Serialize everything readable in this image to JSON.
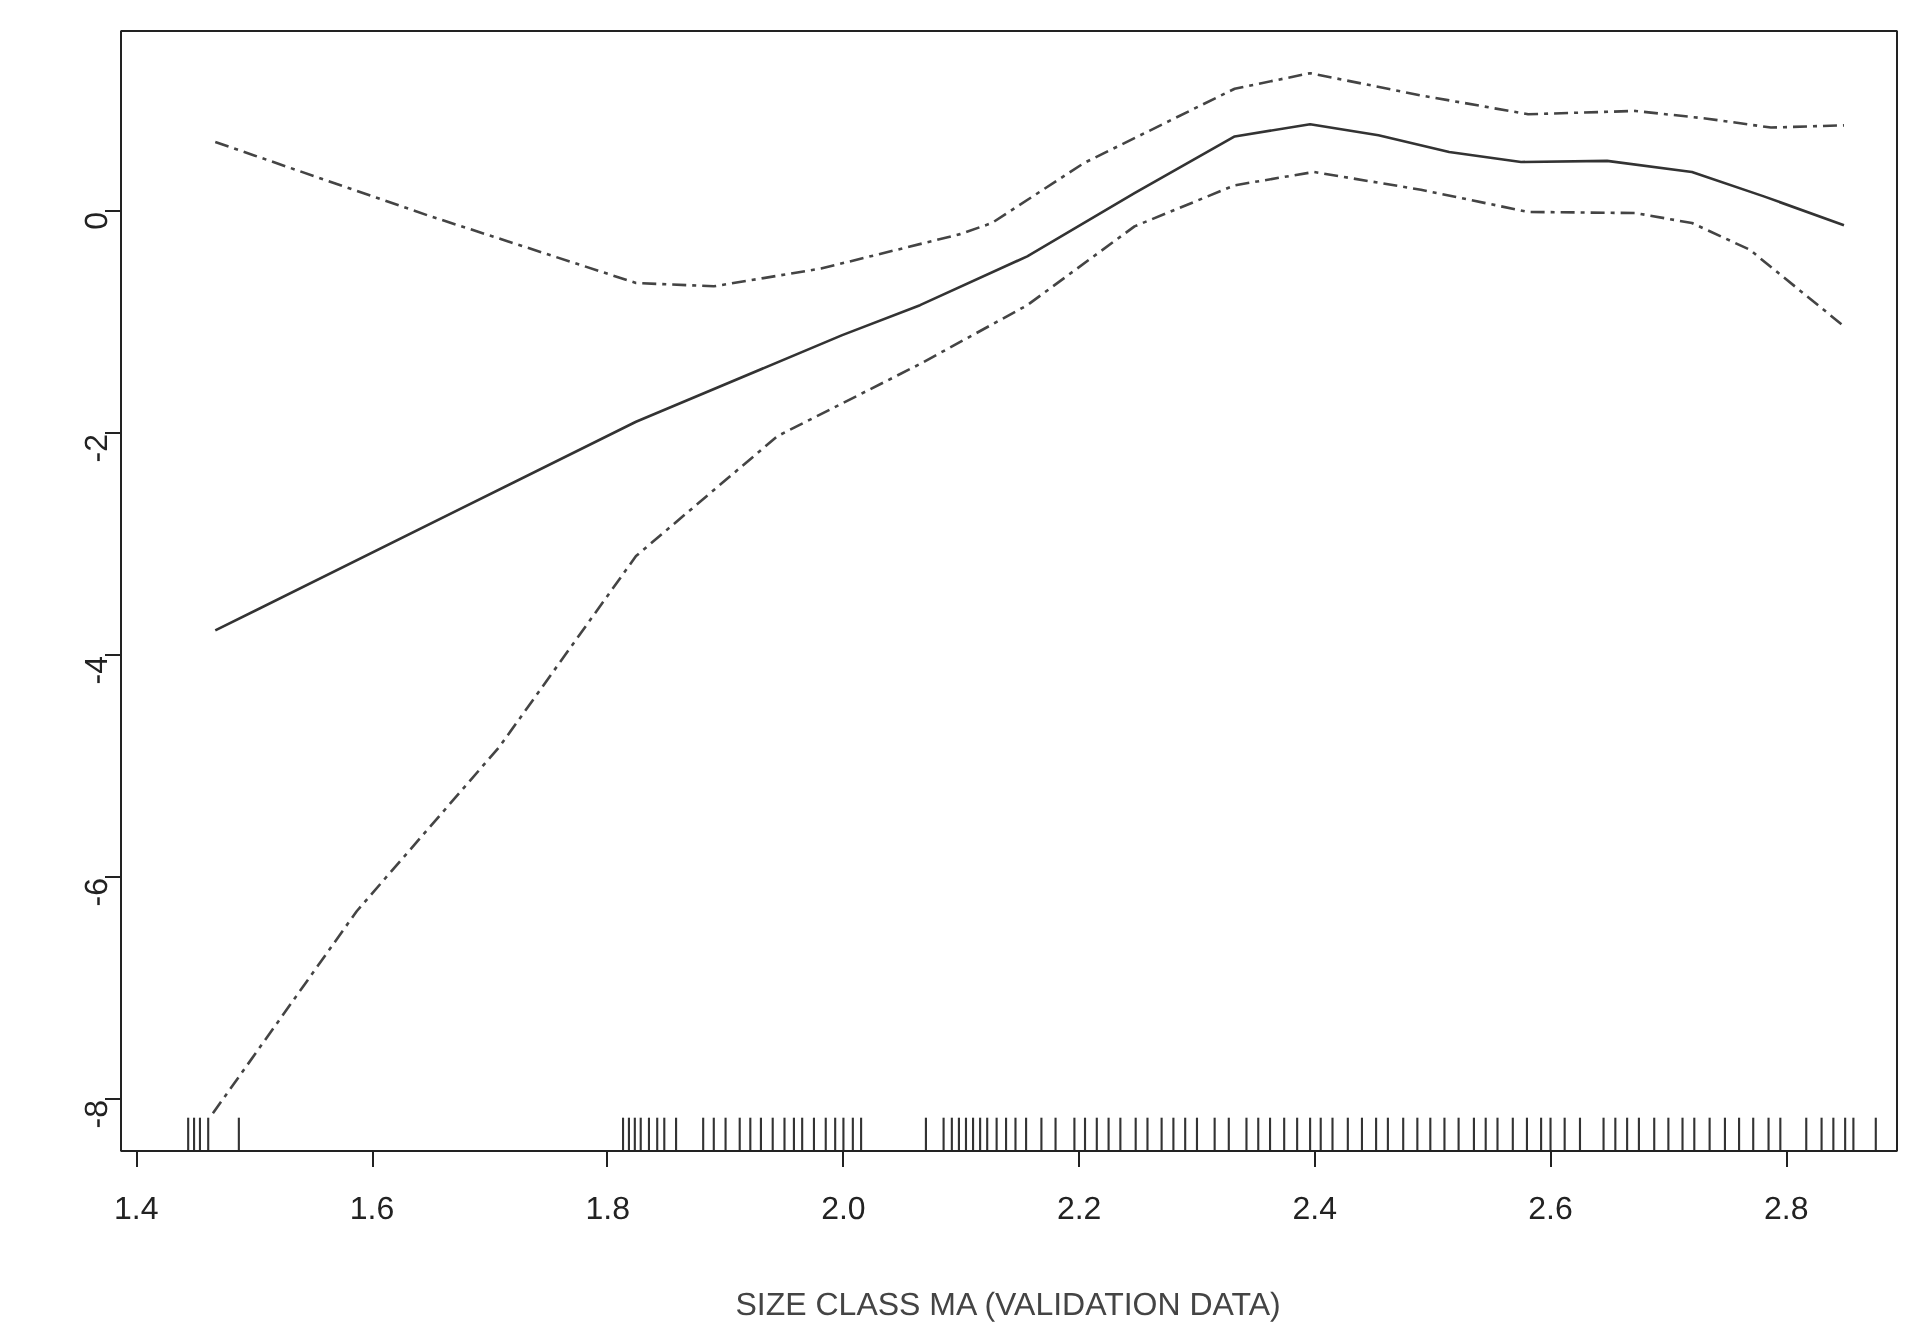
{
  "chart_data": {
    "type": "line",
    "xlabel": "SIZE CLASS MA (VALIDATION DATA)",
    "xlim": [
      1.387,
      2.894
    ],
    "ylim": [
      -8.46,
      1.63
    ],
    "xticks": [
      {
        "value": 1.4,
        "label": "1.4"
      },
      {
        "value": 1.6,
        "label": "1.6"
      },
      {
        "value": 1.8,
        "label": "1.8"
      },
      {
        "value": 2.0,
        "label": "2.0"
      },
      {
        "value": 2.2,
        "label": "2.2"
      },
      {
        "value": 2.4,
        "label": "2.4"
      },
      {
        "value": 2.6,
        "label": "2.6"
      },
      {
        "value": 2.8,
        "label": "2.8"
      }
    ],
    "yticks": [
      -8,
      -6,
      -4,
      -2,
      0
    ],
    "grid": false,
    "series": [
      {
        "color": "#333333",
        "line_style": "solid",
        "x": [
          1.467,
          1.824,
          1.999,
          2.065,
          2.156,
          2.247,
          2.332,
          2.396,
          2.454,
          2.514,
          2.575,
          2.648,
          2.72,
          2.781,
          2.849
        ],
        "values": [
          -3.77,
          -1.89,
          -1.11,
          -0.84,
          -0.4,
          0.17,
          0.68,
          0.79,
          0.69,
          0.54,
          0.45,
          0.46,
          0.36,
          0.14,
          -0.12
        ]
      },
      {
        "type": "line",
        "color": "#444444",
        "line_style": "dashdot",
        "x": [
          1.467,
          1.647,
          1.824,
          1.89,
          1.981,
          2.099,
          2.126,
          2.204,
          2.332,
          2.396,
          2.49,
          2.581,
          2.672,
          2.733,
          2.787,
          2.849
        ],
        "values": [
          0.63,
          -0.03,
          -0.64,
          -0.67,
          -0.51,
          -0.2,
          -0.1,
          0.44,
          1.11,
          1.25,
          1.05,
          0.88,
          0.91,
          0.84,
          0.76,
          0.78
        ]
      },
      {
        "type": "line",
        "color": "#444444",
        "line_style": "dashdot",
        "x": [
          1.465,
          1.587,
          1.708,
          1.824,
          1.944,
          2.065,
          2.156,
          2.247,
          2.332,
          2.399,
          2.49,
          2.581,
          2.672,
          2.72,
          2.769,
          2.849
        ],
        "values": [
          -8.12,
          -6.3,
          -4.82,
          -3.1,
          -2.02,
          -1.37,
          -0.84,
          -0.13,
          0.24,
          0.36,
          0.2,
          0.0,
          -0.01,
          -0.1,
          -0.34,
          -1.03
        ]
      },
      {
        "type": "bar",
        "color": "#333333",
        "base": [
          -8.46,
          -8.46,
          -8.46,
          -8.46,
          -8.46,
          -8.46,
          -8.46,
          -8.46,
          -8.46,
          -8.46,
          -8.46,
          -8.46,
          -8.46,
          -8.46,
          -8.46,
          -8.46,
          -8.46,
          -8.46,
          -8.46,
          -8.46,
          -8.46,
          -8.46,
          -8.46,
          -8.46,
          -8.46,
          -8.46,
          -8.46,
          -8.46,
          -8.46,
          -8.46,
          -8.46,
          -8.46,
          -8.46,
          -8.46,
          -8.46,
          -8.46,
          -8.46,
          -8.46,
          -8.46,
          -8.46,
          -8.46,
          -8.46,
          -8.46,
          -8.46,
          -8.46,
          -8.46,
          -8.46,
          -8.46,
          -8.46,
          -8.46,
          -8.46,
          -8.46,
          -8.46,
          -8.46,
          -8.46,
          -8.46,
          -8.46,
          -8.46,
          -8.46,
          -8.46,
          -8.46,
          -8.46,
          -8.46,
          -8.46,
          -8.46,
          -8.46,
          -8.46,
          -8.46,
          -8.46,
          -8.46,
          -8.46,
          -8.46,
          -8.46,
          -8.46,
          -8.46,
          -8.46,
          -8.46,
          -8.46,
          -8.46,
          -8.46,
          -8.46,
          -8.46,
          -8.46,
          -8.46,
          -8.46,
          -8.46,
          -8.46,
          -8.46,
          -8.46,
          -8.46,
          -8.46,
          -8.46,
          -8.46,
          -8.46,
          -8.46,
          -8.46,
          -8.46,
          -8.46,
          -8.46,
          -8.46,
          -8.46,
          -8.46
        ],
        "x": [
          1.444,
          1.449,
          1.454,
          1.461,
          1.487,
          1.813,
          1.818,
          1.823,
          1.828,
          1.835,
          1.842,
          1.848,
          1.858,
          1.881,
          1.89,
          1.9,
          1.912,
          1.921,
          1.93,
          1.94,
          1.95,
          1.958,
          1.965,
          1.975,
          1.985,
          1.993,
          2.0,
          2.008,
          2.015,
          2.07,
          2.085,
          2.092,
          2.098,
          2.104,
          2.11,
          2.116,
          2.122,
          2.13,
          2.138,
          2.146,
          2.155,
          2.168,
          2.18,
          2.196,
          2.205,
          2.215,
          2.225,
          2.235,
          2.248,
          2.258,
          2.27,
          2.28,
          2.29,
          2.3,
          2.315,
          2.327,
          2.342,
          2.352,
          2.362,
          2.374,
          2.385,
          2.396,
          2.405,
          2.415,
          2.428,
          2.44,
          2.452,
          2.462,
          2.475,
          2.487,
          2.498,
          2.51,
          2.522,
          2.535,
          2.545,
          2.555,
          2.568,
          2.58,
          2.592,
          2.6,
          2.612,
          2.625,
          2.645,
          2.655,
          2.665,
          2.675,
          2.688,
          2.7,
          2.712,
          2.722,
          2.735,
          2.748,
          2.76,
          2.772,
          2.785,
          2.795,
          2.817,
          2.83,
          2.84,
          2.85,
          2.857,
          2.876
        ],
        "values": [
          0.3,
          0.3,
          0.3,
          0.3,
          0.3,
          0.3,
          0.3,
          0.3,
          0.3,
          0.3,
          0.3,
          0.3,
          0.3,
          0.3,
          0.3,
          0.3,
          0.3,
          0.3,
          0.3,
          0.3,
          0.3,
          0.3,
          0.3,
          0.3,
          0.3,
          0.3,
          0.3,
          0.3,
          0.3,
          0.3,
          0.3,
          0.3,
          0.3,
          0.3,
          0.3,
          0.3,
          0.3,
          0.3,
          0.3,
          0.3,
          0.3,
          0.3,
          0.3,
          0.3,
          0.3,
          0.3,
          0.3,
          0.3,
          0.3,
          0.3,
          0.3,
          0.3,
          0.3,
          0.3,
          0.3,
          0.3,
          0.3,
          0.3,
          0.3,
          0.3,
          0.3,
          0.3,
          0.3,
          0.3,
          0.3,
          0.3,
          0.3,
          0.3,
          0.3,
          0.3,
          0.3,
          0.3,
          0.3,
          0.3,
          0.3,
          0.3,
          0.3,
          0.3,
          0.3,
          0.3,
          0.3,
          0.3,
          0.3,
          0.3,
          0.3,
          0.3,
          0.3,
          0.3,
          0.3,
          0.3,
          0.3,
          0.3,
          0.3,
          0.3,
          0.3,
          0.3,
          0.3,
          0.3,
          0.3,
          0.3,
          0.3,
          0.3
        ]
      }
    ]
  }
}
